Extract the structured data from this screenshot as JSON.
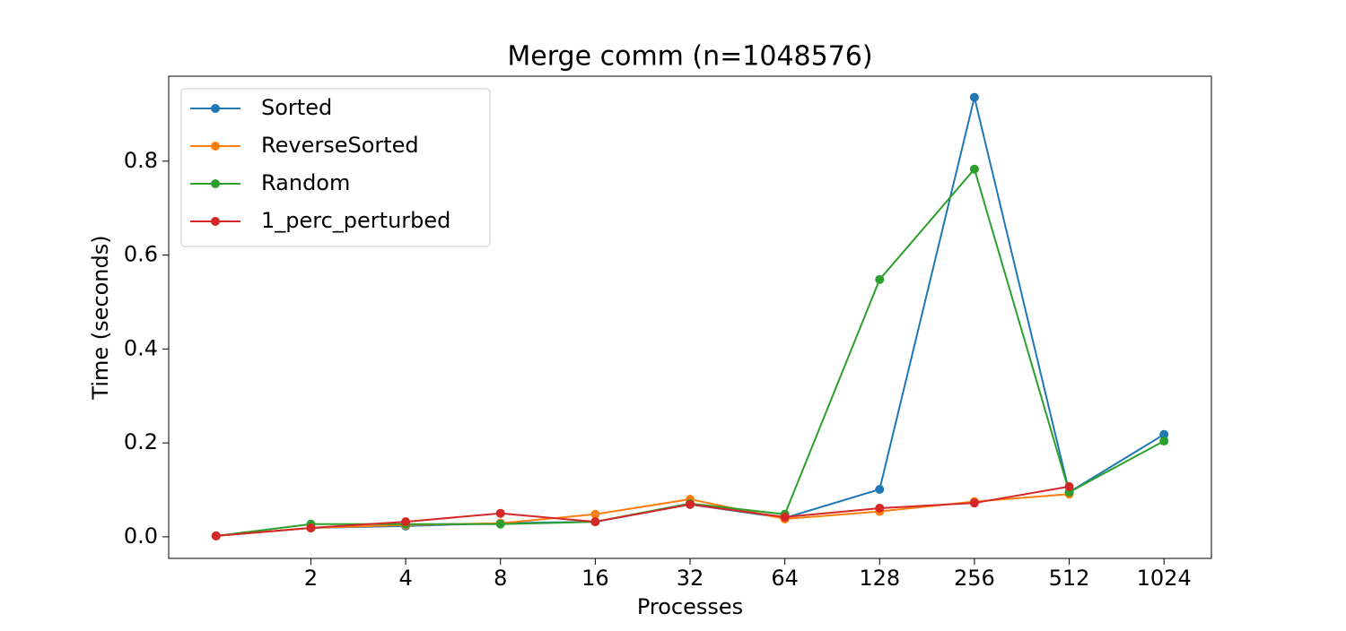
{
  "chart_data": {
    "type": "line",
    "title": "Merge comm (n=1048576)",
    "x_label": "Processes",
    "y_label": "Time (seconds)",
    "categories": [
      null,
      "2",
      "4",
      "8",
      "16",
      "32",
      "64",
      "128",
      "256",
      "512",
      "1024"
    ],
    "series": [
      {
        "name": "Sorted",
        "color": "#1f77b4",
        "values": [
          0.002,
          0.019,
          0.023,
          0.029,
          0.032,
          0.069,
          0.04,
          0.101,
          0.936,
          0.095,
          0.218
        ]
      },
      {
        "name": "ReverseSorted",
        "color": "#ff7f0e",
        "values": [
          0.002,
          0.019,
          0.025,
          0.029,
          0.048,
          0.08,
          0.038,
          0.054,
          0.075,
          0.091,
          null
        ]
      },
      {
        "name": "Random",
        "color": "#2ca02c",
        "values": [
          0.002,
          0.027,
          0.027,
          0.027,
          0.032,
          0.071,
          0.048,
          0.548,
          0.783,
          0.095,
          0.204
        ]
      },
      {
        "name": "1_perc_perturbed",
        "color": "#d62728",
        "values": [
          0.002,
          0.019,
          0.032,
          0.05,
          0.032,
          0.069,
          0.042,
          0.061,
          0.072,
          0.107,
          null
        ]
      }
    ],
    "ylim": [
      -0.046,
      0.981
    ],
    "yticks": [
      {
        "value": 0,
        "label": "0.0"
      },
      0.2,
      0.4,
      0.6,
      0.8
    ],
    "grid": false,
    "legend": "upper-left"
  }
}
